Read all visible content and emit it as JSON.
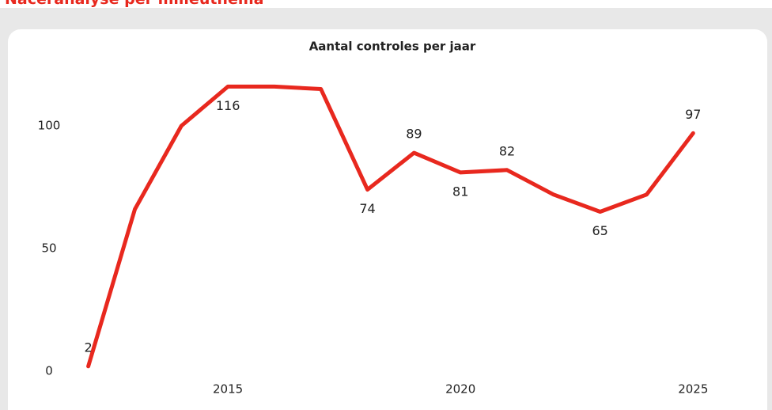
{
  "header": {
    "title": "Naceranalyse per milieuthema"
  },
  "chart_data": {
    "type": "line",
    "title": "Aantal controles per jaar",
    "x": [
      2012,
      2013,
      2014,
      2015,
      2016,
      2017,
      2018,
      2019,
      2020,
      2021,
      2022,
      2023,
      2024,
      2025
    ],
    "series": [
      {
        "name": "Aantal controles",
        "color": "#e8281e",
        "values": [
          2,
          66,
          100,
          116,
          116,
          115,
          74,
          89,
          81,
          82,
          72,
          65,
          72,
          97
        ],
        "value_labels": [
          "2",
          null,
          null,
          "116",
          null,
          null,
          "74",
          "89",
          "81",
          "82",
          null,
          "65",
          null,
          "97"
        ]
      }
    ],
    "xlim": [
      2011.7,
      2026.1
    ],
    "xticks": [
      2015,
      2020,
      2025
    ],
    "ylim": [
      0,
      120
    ],
    "yticks": [
      0,
      50,
      100
    ],
    "grid": false
  }
}
